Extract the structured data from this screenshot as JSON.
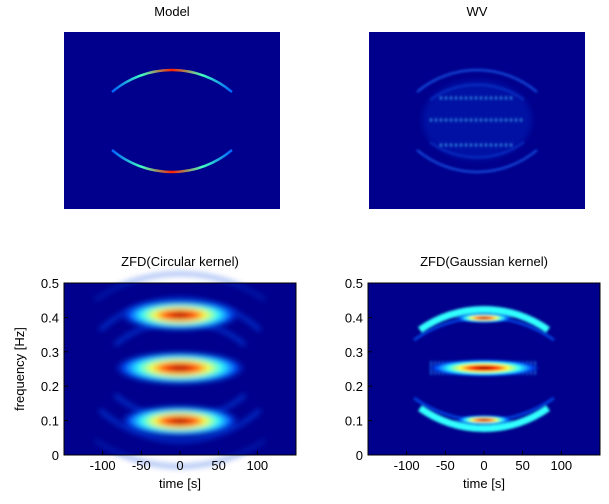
{
  "chart_data": [
    {
      "type": "heatmap",
      "title": "Model"
    },
    {
      "type": "heatmap",
      "title": "WV"
    },
    {
      "type": "heatmap",
      "title": "ZFD(Circular kernel)",
      "xlabel": "time [s]",
      "ylabel": "frequency [Hz]",
      "xlim": [
        -150,
        150
      ],
      "xticks": [
        -100,
        -50,
        0,
        50,
        100
      ],
      "ylim": [
        0,
        0.5
      ],
      "yticks": [
        0,
        0.1,
        0.2,
        0.3,
        0.4,
        0.5
      ]
    },
    {
      "type": "heatmap",
      "title": "ZFD(Gaussian kernel)",
      "xlabel": "time [s]",
      "xlim": [
        -150,
        150
      ],
      "xticks": [
        -100,
        -50,
        0,
        50,
        100
      ],
      "ylim": [
        0,
        0.5
      ],
      "yticks": [
        0,
        0.1,
        0.2,
        0.3,
        0.4,
        0.5
      ]
    }
  ]
}
